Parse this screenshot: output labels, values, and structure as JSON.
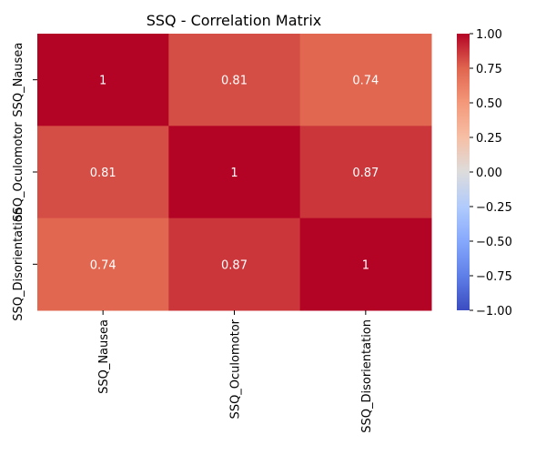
{
  "chart_data": {
    "type": "heatmap",
    "title": "SSQ - Correlation Matrix",
    "xlabel": "",
    "ylabel": "",
    "categories": [
      "SSQ_Nausea",
      "SSQ_Oculomotor",
      "SSQ_Disorientation"
    ],
    "values": [
      [
        1,
        0.81,
        0.74
      ],
      [
        0.81,
        1,
        0.87
      ],
      [
        0.74,
        0.87,
        1
      ]
    ],
    "annotations": [
      [
        "1",
        "0.81",
        "0.74"
      ],
      [
        "0.81",
        "1",
        "0.87"
      ],
      [
        "0.74",
        "0.87",
        "1"
      ]
    ],
    "colormap": "coolwarm",
    "vmin": -1,
    "vmax": 1,
    "colorbar_ticks": [
      "1.00",
      "0.75",
      "0.50",
      "0.25",
      "0.00",
      "−0.25",
      "−0.50",
      "−0.75",
      "−1.00"
    ],
    "grid": false,
    "colorbar_position": "right"
  }
}
